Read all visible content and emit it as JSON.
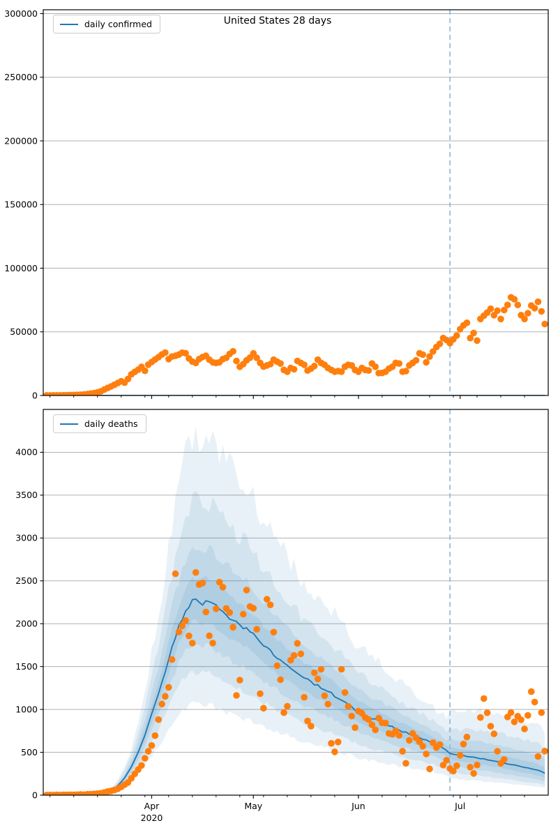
{
  "figure": {
    "title": "United States 28 days",
    "year_sublabel": "2020"
  },
  "colors": {
    "scatter": "#ff7f0e",
    "line": "#1f77b4",
    "band_fill_rgb": "31,119,180",
    "band_alpha": 0.1,
    "vline": "#8cb6d8",
    "grid": "#b0b0b0",
    "spine": "#000000",
    "text": "#000000",
    "background": "#ffffff"
  },
  "chart_data": [
    {
      "type": "scatter",
      "title": "United States 28 days",
      "legend": [
        "daily confirmed"
      ],
      "legend_position": "upper left",
      "x_start_date": "2020-03-01",
      "x_end_date": "2020-07-26",
      "xlim_days": [
        -1,
        148
      ],
      "ylim": [
        0,
        303000
      ],
      "yticks": [
        0,
        50000,
        100000,
        150000,
        200000,
        250000,
        300000
      ],
      "grid": "horizontal",
      "vline_day": 119,
      "vline_date": "2020-06-28",
      "x_major_ticks": [
        {
          "day": 31,
          "label": "Apr",
          "sublabel": "2020"
        },
        {
          "day": 61,
          "label": "May",
          "sublabel": ""
        },
        {
          "day": 92,
          "label": "Jun",
          "sublabel": ""
        },
        {
          "day": 122,
          "label": "Jul",
          "sublabel": ""
        }
      ],
      "x_minor_tick_days": [
        1,
        8,
        15,
        22,
        29,
        36,
        43,
        50,
        57,
        64,
        71,
        78,
        85,
        92,
        99,
        106,
        113,
        120,
        127,
        134,
        141
      ],
      "scatter_values_daily": [
        70,
        55,
        85,
        110,
        95,
        150,
        220,
        310,
        380,
        500,
        620,
        790,
        1100,
        1500,
        1900,
        2400,
        3300,
        4600,
        5900,
        7100,
        8400,
        9800,
        11200,
        10100,
        13000,
        16600,
        18500,
        20200,
        22500,
        19400,
        24200,
        26300,
        28200,
        30100,
        32200,
        33700,
        28600,
        30600,
        31200,
        32100,
        33600,
        33200,
        29100,
        26600,
        25600,
        28600,
        30200,
        31200,
        28100,
        26100,
        25600,
        26100,
        28600,
        29600,
        32600,
        34700,
        27100,
        22600,
        24600,
        27600,
        29700,
        33100,
        29600,
        25600,
        22700,
        23600,
        24600,
        28100,
        26600,
        25100,
        20100,
        18700,
        21600,
        20600,
        27100,
        25600,
        24100,
        19600,
        21100,
        23100,
        28100,
        25600,
        24100,
        21600,
        20100,
        18700,
        19100,
        18700,
        22600,
        24100,
        23600,
        20100,
        18700,
        21600,
        20100,
        19600,
        25100,
        22600,
        17600,
        17700,
        18700,
        21100,
        22600,
        25600,
        25100,
        18700,
        19100,
        23600,
        25600,
        27600,
        33100,
        32100,
        26100,
        30600,
        34600,
        38100,
        40600,
        45100,
        43600,
        41100,
        44100,
        47100,
        52100,
        55100,
        57100,
        45100,
        49100,
        43100,
        60100,
        62600,
        65100,
        68100,
        63100,
        66600,
        60100,
        67100,
        71100,
        77100,
        75600,
        71100,
        63100,
        60100,
        64600,
        70600,
        68600,
        73600,
        66100,
        56100
      ],
      "line_control_points": [
        [
          0,
          0
        ],
        [
          147,
          0
        ]
      ],
      "bands": null
    },
    {
      "type": "scatter",
      "title": "",
      "legend": [
        "daily deaths"
      ],
      "legend_position": "upper left",
      "x_start_date": "2020-03-01",
      "x_end_date": "2020-07-26",
      "xlim_days": [
        -1,
        148
      ],
      "ylim": [
        0,
        4500
      ],
      "yticks": [
        0,
        500,
        1000,
        1500,
        2000,
        2500,
        3000,
        3500,
        4000
      ],
      "grid": "horizontal",
      "vline_day": 119,
      "vline_date": "2020-06-28",
      "x_major_ticks": [
        {
          "day": 31,
          "label": "Apr",
          "sublabel": "2020"
        },
        {
          "day": 61,
          "label": "May",
          "sublabel": ""
        },
        {
          "day": 92,
          "label": "Jun",
          "sublabel": ""
        },
        {
          "day": 122,
          "label": "Jul",
          "sublabel": ""
        }
      ],
      "x_minor_tick_days": [
        1,
        8,
        15,
        22,
        29,
        36,
        43,
        50,
        57,
        64,
        71,
        78,
        85,
        92,
        99,
        106,
        113,
        120,
        127,
        134,
        141
      ],
      "scatter_values_daily": [
        1,
        2,
        1,
        3,
        2,
        4,
        3,
        5,
        4,
        6,
        8,
        6,
        10,
        12,
        15,
        18,
        23,
        31,
        42,
        50,
        59,
        74,
        96,
        122,
        148,
        197,
        248,
        299,
        347,
        430,
        512,
        579,
        694,
        881,
        1063,
        1153,
        1258,
        1582,
        2583,
        1904,
        1975,
        2037,
        1858,
        1774,
        2598,
        2457,
        2475,
        2137,
        1859,
        1774,
        2174,
        2484,
        2426,
        2178,
        2130,
        1959,
        1164,
        1342,
        2112,
        2392,
        2200,
        2180,
        1935,
        1184,
        1015,
        2286,
        2220,
        1902,
        1510,
        1347,
        963,
        1037,
        1575,
        1630,
        1771,
        1649,
        1142,
        865,
        805,
        1428,
        1356,
        1469,
        1160,
        1062,
        605,
        505,
        620,
        1469,
        1198,
        1036,
        922,
        788,
        980,
        955,
        905,
        882,
        820,
        762,
        898,
        845,
        841,
        720,
        710,
        751,
        698,
        512,
        372,
        640,
        719,
        670,
        622,
        571,
        480,
        306,
        612,
        555,
        590,
        351,
        408,
        310,
        281,
        343,
        465,
        596,
        678,
        327,
        254,
        352,
        906,
        1127,
        962,
        804,
        715,
        512,
        372,
        417,
        912,
        964,
        855,
        921,
        880,
        772,
        930,
        1208,
        1086,
        452,
        963,
        514
      ],
      "line_control_points": [
        [
          0,
          0
        ],
        [
          8,
          1
        ],
        [
          12,
          4
        ],
        [
          15,
          10
        ],
        [
          17,
          25
        ],
        [
          19,
          55
        ],
        [
          21,
          110
        ],
        [
          23,
          200
        ],
        [
          25,
          330
        ],
        [
          27,
          500
        ],
        [
          29,
          700
        ],
        [
          31,
          950
        ],
        [
          33,
          1180
        ],
        [
          35,
          1450
        ],
        [
          37,
          1730
        ],
        [
          39,
          1980
        ],
        [
          41,
          2150
        ],
        [
          43,
          2260
        ],
        [
          44,
          2270
        ],
        [
          45,
          2230
        ],
        [
          47,
          2255
        ],
        [
          49,
          2230
        ],
        [
          51,
          2160
        ],
        [
          53,
          2090
        ],
        [
          55,
          2030
        ],
        [
          57,
          1985
        ],
        [
          59,
          1940
        ],
        [
          61,
          1865
        ],
        [
          63,
          1790
        ],
        [
          65,
          1715
        ],
        [
          67,
          1645
        ],
        [
          69,
          1580
        ],
        [
          71,
          1520
        ],
        [
          73,
          1455
        ],
        [
          75,
          1395
        ],
        [
          77,
          1350
        ],
        [
          79,
          1295
        ],
        [
          81,
          1255
        ],
        [
          83,
          1210
        ],
        [
          85,
          1160
        ],
        [
          87,
          1105
        ],
        [
          89,
          1055
        ],
        [
          91,
          1000
        ],
        [
          93,
          955
        ],
        [
          95,
          910
        ],
        [
          97,
          880
        ],
        [
          99,
          850
        ],
        [
          101,
          815
        ],
        [
          103,
          775
        ],
        [
          105,
          745
        ],
        [
          107,
          715
        ],
        [
          109,
          680
        ],
        [
          111,
          655
        ],
        [
          113,
          625
        ],
        [
          115,
          585
        ],
        [
          117,
          545
        ],
        [
          119,
          490
        ],
        [
          120,
          475
        ],
        [
          122,
          462
        ],
        [
          125,
          448
        ],
        [
          128,
          428
        ],
        [
          131,
          408
        ],
        [
          134,
          385
        ],
        [
          137,
          358
        ],
        [
          140,
          332
        ],
        [
          143,
          308
        ],
        [
          145,
          288
        ],
        [
          147,
          258
        ]
      ],
      "bands": {
        "start_day": 13,
        "factor_days": [
          0,
          14,
          30,
          45,
          61,
          91,
          118,
          119,
          133,
          147
        ],
        "levels": [
          {
            "lo": [
              1,
              0.92,
              0.9,
              0.89,
              0.885,
              0.88,
              0.875,
              0.86,
              0.83,
              0.79
            ],
            "hi": [
              1,
              1.09,
              1.11,
              1.12,
              1.13,
              1.13,
              1.12,
              1.16,
              1.21,
              1.27
            ],
            "jitter": 0.015
          },
          {
            "lo": [
              1,
              0.84,
              0.79,
              0.775,
              0.765,
              0.755,
              0.75,
              0.72,
              0.67,
              0.62
            ],
            "hi": [
              1,
              1.18,
              1.25,
              1.28,
              1.29,
              1.28,
              1.25,
              1.36,
              1.5,
              1.64
            ],
            "jitter": 0.025
          },
          {
            "lo": [
              1,
              0.72,
              0.65,
              0.635,
              0.62,
              0.605,
              0.59,
              0.56,
              0.51,
              0.46
            ],
            "hi": [
              1,
              1.32,
              1.46,
              1.52,
              1.52,
              1.48,
              1.42,
              1.6,
              1.85,
              2.12
            ],
            "jitter": 0.035
          },
          {
            "lo": [
              1,
              0.58,
              0.49,
              0.465,
              0.455,
              0.45,
              0.44,
              0.41,
              0.37,
              0.335
            ],
            "hi": [
              1,
              1.52,
              1.75,
              1.86,
              1.85,
              1.8,
              1.7,
              2.0,
              2.45,
              2.88
            ],
            "jitter": 0.05
          }
        ]
      }
    }
  ]
}
